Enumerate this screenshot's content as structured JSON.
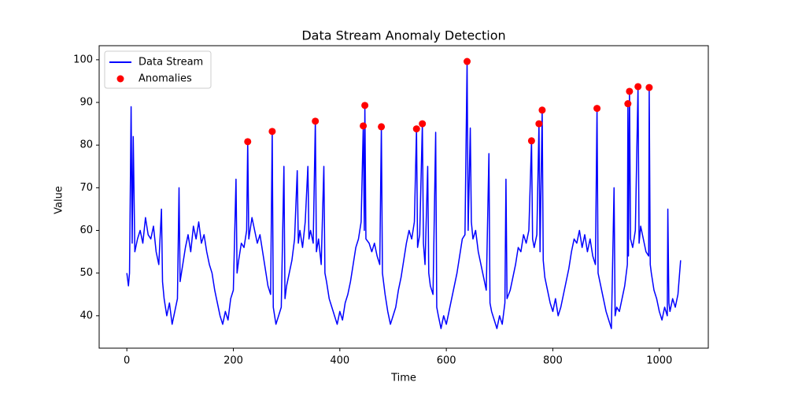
{
  "chart_data": {
    "type": "line",
    "title": "Data Stream Anomaly Detection",
    "x_label": "Time",
    "y_label": "Value",
    "xlim": [
      -52,
      1092
    ],
    "ylim": [
      32.4,
      103.3
    ],
    "xticks": [
      0,
      200,
      400,
      600,
      800,
      1000
    ],
    "yticks": [
      40,
      50,
      60,
      70,
      80,
      90,
      100
    ],
    "grid": false,
    "legend": "upper left",
    "series": [
      {
        "name": "Data Stream",
        "type": "line",
        "color": "#0000ff",
        "x": [
          0,
          3,
          5,
          8,
          10,
          12,
          15,
          20,
          25,
          30,
          35,
          40,
          45,
          50,
          55,
          60,
          65,
          67,
          70,
          75,
          80,
          85,
          90,
          95,
          98,
          100,
          105,
          110,
          115,
          120,
          125,
          130,
          135,
          140,
          145,
          150,
          155,
          160,
          165,
          170,
          175,
          180,
          185,
          190,
          195,
          200,
          205,
          207,
          210,
          215,
          220,
          225,
          227,
          229,
          235,
          240,
          245,
          250,
          255,
          260,
          265,
          270,
          273,
          275,
          280,
          285,
          290,
          295,
          297,
          300,
          305,
          310,
          315,
          320,
          322,
          325,
          330,
          335,
          340,
          342,
          345,
          350,
          354,
          356,
          360,
          365,
          370,
          372,
          375,
          380,
          385,
          390,
          395,
          400,
          405,
          410,
          415,
          420,
          425,
          430,
          435,
          440,
          444,
          446,
          447,
          449,
          455,
          460,
          465,
          470,
          475,
          478,
          480,
          485,
          490,
          495,
          500,
          505,
          510,
          515,
          520,
          525,
          530,
          535,
          540,
          544,
          546,
          550,
          555,
          557,
          560,
          565,
          567,
          570,
          575,
          580,
          582,
          585,
          590,
          595,
          600,
          605,
          610,
          615,
          620,
          625,
          630,
          635,
          639,
          641,
          645,
          647,
          650,
          655,
          660,
          665,
          670,
          675,
          680,
          682,
          685,
          690,
          695,
          700,
          705,
          710,
          712,
          714,
          720,
          725,
          730,
          735,
          740,
          745,
          750,
          755,
          760,
          762,
          765,
          770,
          774,
          776,
          780,
          782,
          785,
          790,
          795,
          800,
          805,
          810,
          815,
          820,
          825,
          830,
          835,
          840,
          845,
          850,
          855,
          860,
          865,
          870,
          875,
          880,
          883,
          885,
          890,
          895,
          900,
          905,
          910,
          915,
          917,
          920,
          925,
          930,
          935,
          940,
          941,
          942,
          944,
          946,
          950,
          955,
          960,
          962,
          965,
          970,
          975,
          980,
          981,
          983,
          985,
          990,
          995,
          1000,
          1005,
          1010,
          1015,
          1016,
          1018,
          1020,
          1025,
          1030,
          1035,
          1040
        ],
        "values": [
          50,
          47,
          50,
          89,
          57,
          82,
          55,
          58,
          60,
          57,
          63,
          59,
          58,
          61,
          55,
          52,
          65,
          48,
          44,
          40,
          43,
          38,
          41,
          44,
          70,
          48,
          52,
          56,
          59,
          55,
          61,
          58,
          62,
          57,
          59,
          55,
          52,
          50,
          46,
          43,
          40,
          38,
          41,
          39,
          44,
          46,
          72,
          50,
          53,
          57,
          56,
          60,
          80.8,
          58,
          63,
          60,
          57,
          59,
          55,
          51,
          47,
          45,
          83.2,
          42,
          38,
          40,
          42,
          75,
          44,
          47,
          50,
          53,
          58,
          74,
          57,
          60,
          56,
          62,
          75,
          58,
          60,
          57,
          85.6,
          55,
          58,
          52,
          75,
          50,
          48,
          44,
          42,
          40,
          38,
          41,
          39,
          43,
          45,
          48,
          52,
          56,
          58,
          62,
          84.5,
          60,
          89.3,
          58,
          57,
          55,
          57,
          54,
          52,
          84.3,
          50,
          45,
          41,
          38,
          40,
          42,
          46,
          49,
          53,
          57,
          60,
          58,
          62,
          83.8,
          56,
          59,
          85,
          57,
          52,
          75,
          50,
          47,
          45,
          83,
          42,
          40,
          37,
          40,
          38,
          41,
          44,
          47,
          50,
          54,
          58,
          59,
          99.6,
          60,
          84,
          62,
          58,
          60,
          55,
          52,
          49,
          46,
          78,
          43,
          41,
          39,
          37,
          40,
          38,
          43,
          72,
          44,
          46,
          49,
          52,
          56,
          55,
          59,
          57,
          60,
          81,
          58,
          56,
          59,
          85,
          55,
          88.2,
          53,
          49,
          46,
          43,
          41,
          44,
          40,
          42,
          45,
          48,
          51,
          55,
          58,
          57,
          60,
          56,
          59,
          55,
          58,
          54,
          52,
          88.6,
          50,
          47,
          44,
          41,
          39,
          37,
          70,
          40,
          42,
          41,
          44,
          47,
          52,
          89.7,
          54,
          92.6,
          58,
          56,
          60,
          93.7,
          57,
          61,
          58,
          55,
          54,
          93.5,
          52,
          50,
          46,
          44,
          41,
          39,
          42,
          40,
          65,
          43,
          41,
          44,
          42,
          45,
          53
        ]
      },
      {
        "name": "Anomalies",
        "type": "scatter",
        "color": "#ff0000",
        "x": [
          227,
          273,
          354,
          444,
          447,
          478,
          544,
          555,
          639,
          760,
          774,
          780,
          883,
          941,
          944,
          960,
          981
        ],
        "values": [
          80.8,
          83.2,
          85.6,
          84.5,
          89.3,
          84.3,
          83.8,
          85.0,
          99.6,
          81.0,
          85.0,
          88.2,
          88.6,
          89.7,
          92.6,
          93.7,
          93.5
        ]
      }
    ]
  }
}
